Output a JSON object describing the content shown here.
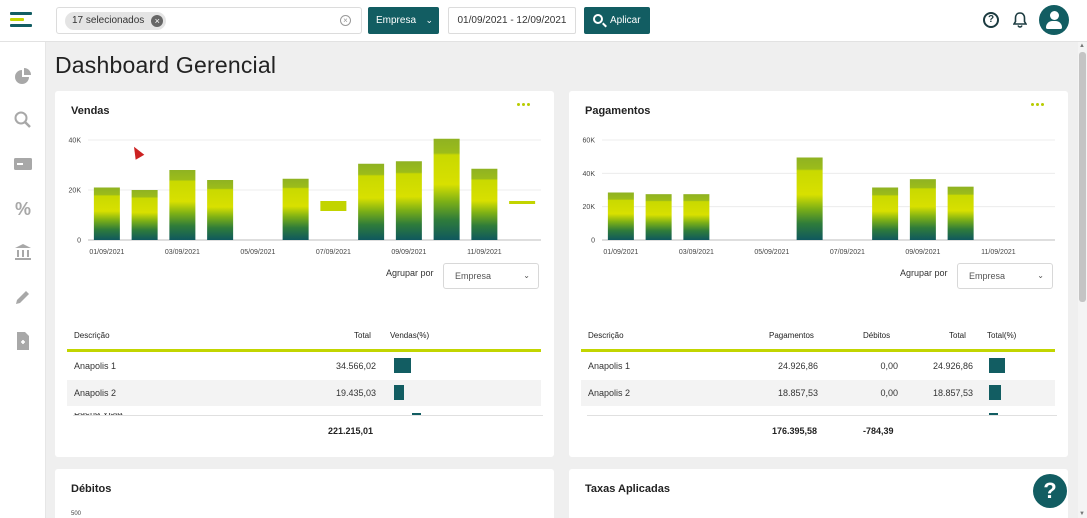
{
  "topbar": {
    "filter_chip": "17 selecionados",
    "group_button": "Empresa",
    "date_range": "01/09/2021 - 12/09/2021",
    "apply_button": "Aplicar",
    "brand_color": "#125d62",
    "accent_color": "#c2d500"
  },
  "sidebar": {
    "items": [
      {
        "icon": "pie-chart-icon"
      },
      {
        "icon": "search-icon"
      },
      {
        "icon": "card-icon"
      },
      {
        "icon": "percent-icon"
      },
      {
        "icon": "bank-icon"
      },
      {
        "icon": "pencil-icon"
      },
      {
        "icon": "document-icon"
      }
    ]
  },
  "page": {
    "title": "Dashboard Gerencial"
  },
  "vendas": {
    "title": "Vendas",
    "group_label": "Agrupar por",
    "group_value": "Empresa",
    "table": {
      "headers": [
        "Descrição",
        "Total",
        "Vendas(%)"
      ],
      "rows": [
        {
          "descricao": "Anapolis 1",
          "total": "34.566,02",
          "pct": 0.157
        },
        {
          "descricao": "Anapolis 2",
          "total": "19.435,03",
          "pct": 0.088
        }
      ],
      "footer_total": "221.215,01"
    }
  },
  "pagamentos": {
    "title": "Pagamentos",
    "group_label": "Agrupar por",
    "group_value": "Empresa",
    "table": {
      "headers": [
        "Descrição",
        "Pagamentos",
        "Débitos",
        "Total",
        "Total(%)"
      ],
      "rows": [
        {
          "descricao": "Anapolis 1",
          "pagamentos": "24.926,86",
          "debitos": "0,00",
          "total": "24.926,86",
          "pct": 0.141
        },
        {
          "descricao": "Anapolis 2",
          "pagamentos": "18.857,53",
          "debitos": "0,00",
          "total": "18.857,53",
          "pct": 0.107
        }
      ],
      "footer_pagamentos": "176.395,58",
      "footer_debitos": "-784,39"
    }
  },
  "debitos": {
    "title": "Débitos",
    "ytick_top": "500"
  },
  "taxas": {
    "title": "Taxas Aplicadas"
  },
  "chart_data": [
    {
      "type": "bar",
      "stacked": true,
      "title": "Vendas",
      "ylim": [
        0,
        40000
      ],
      "yticks": [
        "0",
        "20K",
        "40K"
      ],
      "xtick_labels": [
        "01/09/2021",
        "03/09/2021",
        "05/09/2021",
        "07/09/2021",
        "09/09/2021",
        "11/09/2021"
      ],
      "categories": [
        "01/09",
        "02/09",
        "03/09",
        "04/09",
        "05/09",
        "06/09",
        "07/09",
        "08/09",
        "09/09",
        "10/09",
        "11/09",
        "12/09"
      ],
      "values": [
        21000,
        20000,
        28000,
        24000,
        0,
        24500,
        14000,
        30500,
        31500,
        40500,
        28500,
        14000
      ],
      "floating": [
        false,
        false,
        false,
        false,
        false,
        false,
        true,
        false,
        false,
        false,
        false,
        true
      ],
      "grid": true
    },
    {
      "type": "bar",
      "stacked": true,
      "title": "Pagamentos",
      "ylim": [
        0,
        60000
      ],
      "yticks": [
        "0",
        "20K",
        "40K",
        "60K"
      ],
      "xtick_labels": [
        "01/09/2021",
        "03/09/2021",
        "05/09/2021",
        "07/09/2021",
        "09/09/2021",
        "11/09/2021"
      ],
      "categories": [
        "01/09",
        "02/09",
        "03/09",
        "04/09",
        "05/09",
        "06/09",
        "07/09",
        "08/09",
        "09/09",
        "10/09",
        "11/09",
        "12/09"
      ],
      "values": [
        28500,
        27500,
        27500,
        0,
        0,
        49500,
        0,
        31500,
        36500,
        32000,
        0,
        0
      ],
      "grid": true
    }
  ]
}
